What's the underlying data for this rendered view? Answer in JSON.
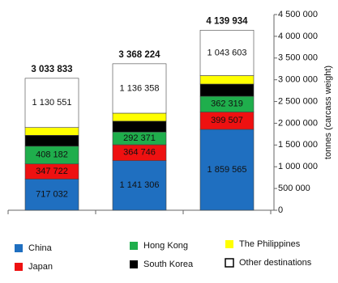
{
  "chart_data": {
    "type": "stacked-bar",
    "categories": [
      null,
      null,
      null
    ],
    "y_axis_label": "tonnes (carcass weight)",
    "ylim": [
      0,
      4500000
    ],
    "yticks": [
      0,
      {
        "value": 500000,
        "label": "500 000"
      },
      {
        "value": 1000000,
        "label": "1 000 000"
      },
      {
        "value": 1500000,
        "label": "1 500 000"
      },
      {
        "value": 2000000,
        "label": "2 000 000"
      },
      {
        "value": 2500000,
        "label": "2 500 000"
      },
      {
        "value": 3000000,
        "label": "3 000 000"
      },
      {
        "value": 3500000,
        "label": "3 500 000"
      },
      {
        "value": 4000000,
        "label": "4 000 000"
      },
      {
        "value": 4500000,
        "label": "4 500 000"
      }
    ],
    "series": [
      {
        "name": "China",
        "color": "#1f6fc0",
        "values": [
          717032,
          1141306,
          1859565
        ],
        "value_labels": [
          "717 032",
          "1 141 306",
          "1 859 565"
        ]
      },
      {
        "name": "Japan",
        "color": "#ee1111",
        "values": [
          347722,
          364746,
          399507
        ],
        "value_labels": [
          "347 722",
          "364 746",
          "399 507"
        ]
      },
      {
        "name": "Hong Kong",
        "color": "#1fae4c",
        "values": [
          408182,
          292371,
          362319
        ],
        "value_labels": [
          "408 182",
          "292 371",
          "362 319"
        ]
      },
      {
        "name": "South Korea",
        "color": "#000000",
        "values": [
          250000,
          250000,
          280000
        ]
      },
      {
        "name": "The Philippines",
        "color": "#ffff00",
        "values": [
          180346,
          183443,
          194940
        ]
      },
      {
        "name": "Other destinations",
        "color": "#ffffff",
        "values": [
          1130551,
          1136358,
          1043603
        ],
        "value_labels": [
          "1 130 551",
          "1 136 358",
          "1 043 603"
        ]
      }
    ],
    "totals": [
      3033833,
      3368224,
      4139934
    ],
    "total_labels": [
      "3 033 833",
      "3 368 224",
      "4 139 934"
    ]
  }
}
